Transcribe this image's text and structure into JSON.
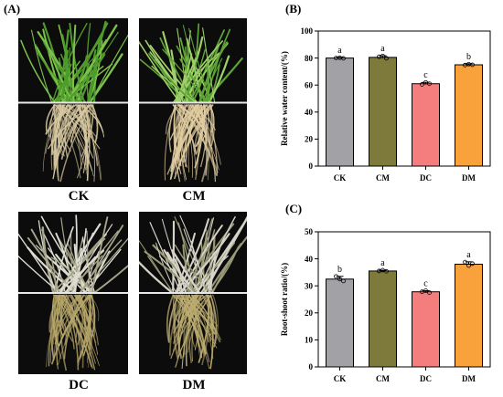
{
  "panels": {
    "a": "(A)",
    "b": "(B)",
    "c": "(C)"
  },
  "photos": [
    {
      "caption": "CK",
      "shoot_color": "#4f9b2c",
      "shoot_tip": "#7cc24a",
      "root_color": "#d8c9a0"
    },
    {
      "caption": "CM",
      "shoot_color": "#5ea336",
      "shoot_tip": "#9fd06a",
      "root_color": "#e2cda0"
    },
    {
      "caption": "DC",
      "shoot_color": "#a7a589",
      "shoot_tip": "#dcdcd0",
      "root_color": "#b8a76a"
    },
    {
      "caption": "DM",
      "shoot_color": "#9a9a78",
      "shoot_tip": "#d6d4c8",
      "root_color": "#bcac70"
    }
  ],
  "chart_data": [
    {
      "type": "bar",
      "panel": "(B)",
      "categories": [
        "CK",
        "CM",
        "DC",
        "DM"
      ],
      "values": [
        80,
        80.5,
        61,
        75
      ],
      "errors": [
        0.5,
        1.2,
        1.0,
        0.8
      ],
      "letters": [
        "a",
        "a",
        "c",
        "b"
      ],
      "points": [
        [
          80,
          80.2,
          79.8
        ],
        [
          81,
          81.5,
          79.8
        ],
        [
          60.5,
          62,
          61
        ],
        [
          74.8,
          75.5,
          75
        ]
      ],
      "colors": [
        "#a1a1a6",
        "#7d7a3c",
        "#f47e7e",
        "#f9a13a"
      ],
      "ylabel": "Relative water content/(%)",
      "ylim": [
        0,
        100
      ],
      "yticks": [
        0,
        20,
        40,
        60,
        80,
        100
      ]
    },
    {
      "type": "bar",
      "panel": "(C)",
      "categories": [
        "CK",
        "CM",
        "DC",
        "DM"
      ],
      "values": [
        32.5,
        35.5,
        27.8,
        38
      ],
      "errors": [
        1.0,
        0.3,
        0.4,
        0.9
      ],
      "letters": [
        "b",
        "a",
        "c",
        "a"
      ],
      "points": [
        [
          33.5,
          32.5,
          31.8
        ],
        [
          35.5,
          35.8,
          35.4
        ],
        [
          27.8,
          28.2,
          27.5
        ],
        [
          38.8,
          37.5,
          38.2
        ]
      ],
      "colors": [
        "#a1a1a6",
        "#7d7a3c",
        "#f47e7e",
        "#f9a13a"
      ],
      "ylabel": "Root-shoot ratio/(%)",
      "ylim": [
        0,
        50
      ],
      "yticks": [
        0,
        10,
        20,
        30,
        40,
        50
      ]
    }
  ]
}
